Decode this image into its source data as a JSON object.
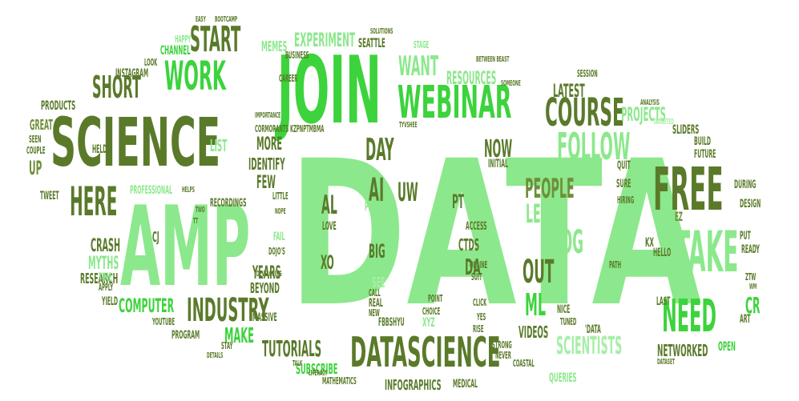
{
  "colors": {
    "dark_olive": "#5a7a2a",
    "bright_green": "#3cd33c",
    "light_green": "#8ce88c",
    "olive": "#6f8f3a",
    "pale_green": "#a7eea7"
  },
  "words": {
    "data": "DATA",
    "join": "JOIN",
    "science": "SCIENCE",
    "amp": "AMP",
    "webinar": "WEBINAR",
    "free": "FREE",
    "work": "WORK",
    "start": "START",
    "short": "SHORT",
    "here": "HERE",
    "course": "COURSE",
    "follow": "FOLLOW",
    "take": "TAKE",
    "need": "NEED",
    "industry": "INDUSTRY",
    "datascience": "DATASCIENCE",
    "tutorials": "TUTORIALS",
    "scientists": "SCIENTISTS",
    "want": "WANT",
    "blog": "BLOG",
    "learn": "LEARN",
    "people": "PEOPLE",
    "out": "OUT",
    "ml": "ML",
    "ai": "AI",
    "uw": "UW",
    "now": "NOW",
    "day": "DAY",
    "make": "MAKE",
    "computer": "COMPUTER",
    "experiment": "EXPERIMENT",
    "resources": "RESOURCES",
    "projects": "PROJECTS",
    "latest": "LATEST",
    "infographics": "INFOGRAPHICS",
    "subscribe": "SUBSCRIBE",
    "videos": "VIDEOS",
    "networked": "NETWORKED",
    "open": "OPEN",
    "cr": "CR",
    "years": "YEARS",
    "beyond": "BEYOND",
    "crash": "CRASH",
    "myths": "MYTHS",
    "research": "RESEARCH",
    "identify": "IDENTIFY",
    "more": "MORE",
    "list": "LIST",
    "few": "FEW",
    "al": "AL",
    "yn": "YN",
    "big": "BIG",
    "left": "LEFT",
    "see": "SEE",
    "pt": "PT",
    "da": "DA",
    "ctds": "CTDS",
    "xo": "XO",
    "memes": "MEMES",
    "channel": "CHANNEL",
    "instagram": "INSTAGRAM",
    "products": "PRODUCTS",
    "great": "GREAT",
    "seattle": "SEATTLE",
    "professional": "PROFESSIONAL",
    "tweet": "TWEET",
    "up": "UP",
    "take_small": "YIELD",
    "queries": "QUERIES",
    "xyz": "XYZ",
    "real": "REAL",
    "feel": "FEEL",
    "online": "ONLINE",
    "access": "ACCESS",
    "pretty": "PRETTY",
    "love": "LOVE",
    "sliders": "SLIDERS",
    "build": "BUILD",
    "future": "FUTURE",
    "during": "DURING",
    "design": "DESIGN",
    "quit": "QUIT",
    "hiring": "HIRING",
    "sure": "SURE",
    "ez": "EZ",
    "kx": "KX",
    "ready": "READY",
    "hello": "HELLO",
    "put": "PUT",
    "art": "ART",
    "youtube": "YOUTUBE",
    "program": "PROGRAM",
    "time": "TIME",
    "apply": "APPLY",
    "happy": "HAPPY",
    "look": "LOOK",
    "couple": "COUPLE",
    "seen": "SEEN",
    "cj": "CJ",
    "held": "HELD",
    "recordings": "RECORDINGS",
    "fail": "FAIL",
    "dojo": "DOJO'S",
    "massive": "MASSIVE",
    "stay": "STAY",
    "details": "DETAILS",
    "mathematics": "MATHEMATICS",
    "medical": "MEDICAL",
    "coastal": "COASTAL",
    "strong": "STRONG",
    "never": "NEVER",
    "nice": "NICE",
    "tuned": "TUNED",
    "data_q": "'DATA",
    "last": "LAST",
    "latest_small": "PATH",
    "career": "CAREER",
    "business": "BUSINESS",
    "stage": "STAGE",
    "initial": "INITIAL",
    "session": "SESSION",
    "analysis": "ANALYSIS",
    "targeted": "TARGETED",
    "dataset": "DATASET",
    "bootcamp": "BOOTCAMP",
    "easy": "EASY",
    "cormorants": "CORMORANTS KZPNPTMBMA",
    "importance": "IMPORTANCE",
    "fbbshyu": "FBBSHYU",
    "developing": "DEVELOPING",
    "new": "NEW",
    "call": "CALL",
    "choice": "CHOICE",
    "rise": "RISE",
    "click": "CLICK",
    "yes": "YES",
    "point": "POINT",
    "little": "LITTLE",
    "nope": "NOPE",
    "helps": "HELPS",
    "suit": "SUIT",
    "two": "TWO",
    "tt": "TT",
    "ztw": "ZTW",
    "wm": "WM",
    "literacy": "LITERACY",
    "talk": "TALK",
    "between": "BETWEEN BEAST",
    "someone": "SOMEONE",
    "solutions": "SOLUTIONS",
    "twshee": "TYVSHEE"
  }
}
